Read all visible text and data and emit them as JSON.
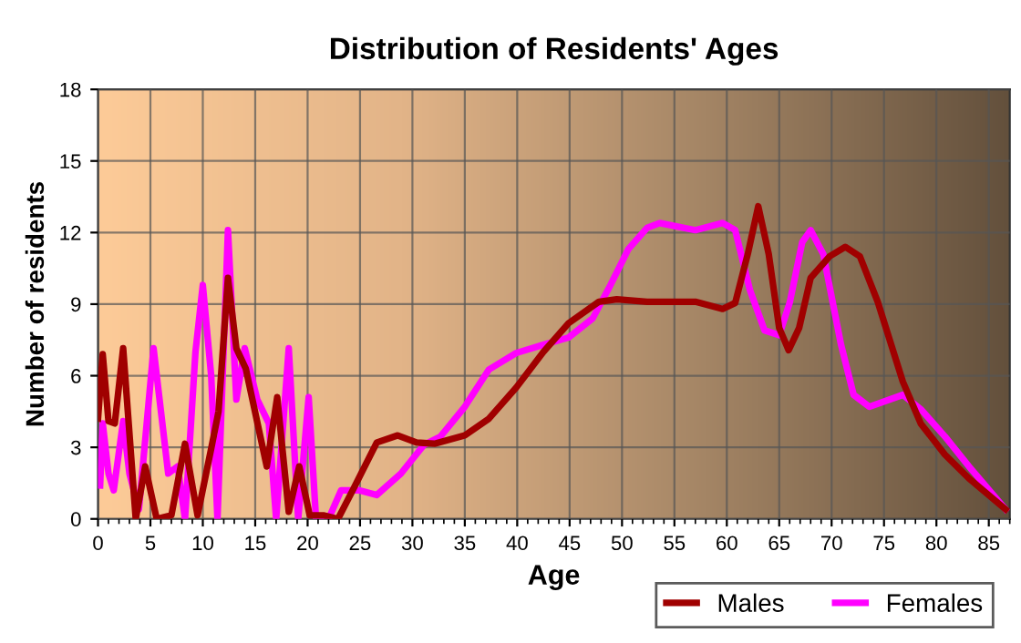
{
  "chart_data": {
    "type": "line",
    "title": "Distribution of Residents' Ages",
    "xlabel": "Age",
    "ylabel": "Number of residents",
    "xlim": [
      0,
      87
    ],
    "xticks": [
      0,
      5,
      10,
      15,
      20,
      25,
      30,
      35,
      40,
      45,
      50,
      55,
      60,
      65,
      70,
      75,
      80,
      85
    ],
    "ylim": [
      0,
      18
    ],
    "yticks": [
      0,
      3,
      6,
      9,
      12,
      15,
      18
    ],
    "grid": true,
    "legend": "bottom right",
    "series": [
      {
        "name": "Males",
        "color": "#a00000",
        "x": [
          0,
          0.45,
          1.0,
          1.6,
          2.4,
          3.6,
          4.5,
          5.6,
          7.0,
          8.3,
          9.5,
          10.8,
          11.5,
          12.4,
          13.2,
          14.1,
          16.1,
          17.1,
          18.2,
          19.2,
          20.2,
          21.5,
          22.9,
          24.3,
          26.6,
          28.6,
          30.4,
          32.1,
          35,
          37.3,
          39.9,
          42.5,
          44.9,
          47.8,
          49.5,
          52.4,
          57,
          59.6,
          60.8,
          62,
          63,
          64,
          65,
          65.9,
          66.9,
          68,
          69.8,
          71.3,
          72.7,
          74.4,
          76.8,
          78.5,
          80.8,
          83.1,
          86.6
        ],
        "values": [
          4.2,
          6.9,
          4.1,
          4.0,
          7.15,
          0,
          2.2,
          0,
          0.15,
          3.15,
          0.15,
          2.95,
          4.5,
          10.1,
          7.15,
          6.3,
          2.2,
          5.1,
          0.3,
          2.2,
          0.15,
          0.15,
          0,
          1.2,
          3.2,
          3.5,
          3.2,
          3.15,
          3.5,
          4.2,
          5.5,
          7.0,
          8.2,
          9.1,
          9.2,
          9.1,
          9.1,
          8.8,
          9.05,
          11.1,
          13.1,
          11.1,
          8.0,
          7.07,
          8.0,
          10.1,
          11.0,
          11.4,
          11.0,
          9.1,
          5.75,
          4.0,
          2.7,
          1.7,
          0.4
        ]
      },
      {
        "name": "Females",
        "color": "#ff00ff",
        "x": [
          0.2,
          0.45,
          1.0,
          1.5,
          2.4,
          3.0,
          3.9,
          5.3,
          6.7,
          7.6,
          8.3,
          9.3,
          10.0,
          10.8,
          11.4,
          12.4,
          13.2,
          14.0,
          15.2,
          16.3,
          17.0,
          18.2,
          19.1,
          20.1,
          20.8,
          22,
          23.2,
          24.9,
          26.6,
          28.9,
          31.1,
          32.7,
          35,
          37.3,
          39.9,
          42.5,
          44.9,
          47.2,
          48.9,
          50.6,
          52.4,
          53.6,
          57,
          59.6,
          60.8,
          62.2,
          63.6,
          65,
          66,
          67.2,
          68,
          69.2,
          70.9,
          72.1,
          73.6,
          76.8,
          78.5,
          80.8,
          83.1,
          86.6
        ],
        "values": [
          1.4,
          4.0,
          1.9,
          1.2,
          4.1,
          1.9,
          0.4,
          7.15,
          1.9,
          2.2,
          0,
          7.0,
          9.8,
          6.0,
          0,
          12.1,
          5.0,
          7.15,
          5.0,
          4.0,
          0,
          7.15,
          0,
          5.1,
          0,
          0,
          1.2,
          1.2,
          1.0,
          1.9,
          3.1,
          3.46,
          4.7,
          6.26,
          6.95,
          7.3,
          7.6,
          8.4,
          9.8,
          11.3,
          12.2,
          12.4,
          12.1,
          12.4,
          12.1,
          9.6,
          7.9,
          7.7,
          9.06,
          11.6,
          12.1,
          11.1,
          7.3,
          5.2,
          4.7,
          5.2,
          4.6,
          3.46,
          2.2,
          0.4
        ]
      }
    ]
  }
}
